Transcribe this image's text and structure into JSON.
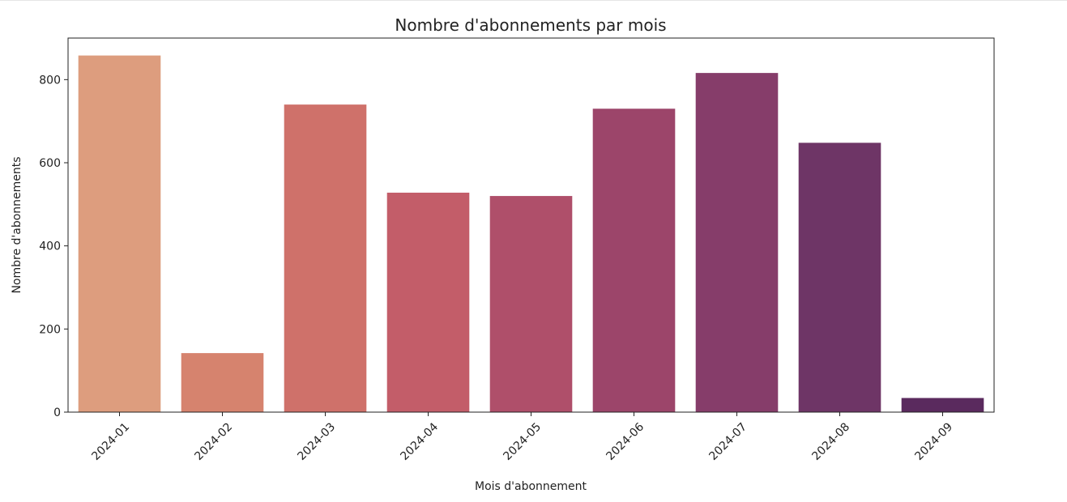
{
  "chart_data": {
    "type": "bar",
    "title": "Nombre d'abonnements par mois",
    "xlabel": "Mois d'abonnement",
    "ylabel": "Nombre d'abonnements",
    "categories": [
      "2024-01",
      "2024-02",
      "2024-03",
      "2024-04",
      "2024-05",
      "2024-06",
      "2024-07",
      "2024-08",
      "2024-09"
    ],
    "values": [
      858,
      142,
      740,
      528,
      520,
      730,
      816,
      648,
      34
    ],
    "colors": [
      "#dd9d7e",
      "#d6836e",
      "#cf716a",
      "#c35d69",
      "#af4f6a",
      "#9c456a",
      "#863d6a",
      "#6e3566",
      "#5a2a5e"
    ],
    "ylim": [
      0,
      900
    ],
    "yticks": [
      0,
      200,
      400,
      600,
      800
    ],
    "grid": false,
    "legend": "none"
  }
}
